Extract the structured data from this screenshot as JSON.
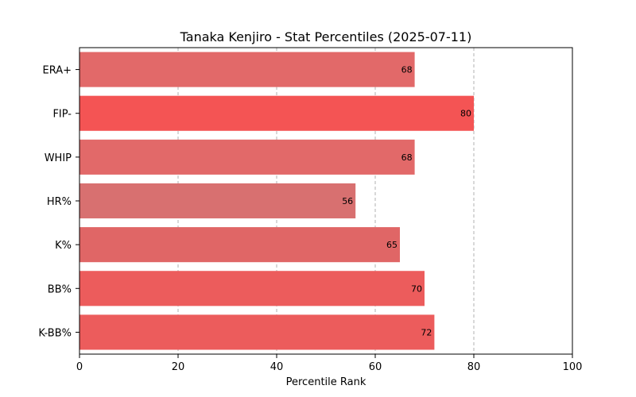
{
  "chart_data": {
    "type": "bar",
    "orientation": "horizontal",
    "title": "Tanaka Kenjiro - Stat Percentiles (2025-07-11)",
    "xlabel": "Percentile Rank",
    "ylabel": "",
    "xlim": [
      0,
      100
    ],
    "xticks": [
      0,
      20,
      40,
      60,
      80,
      100
    ],
    "grid": "vertical dashed",
    "categories": [
      "ERA+",
      "FIP-",
      "WHIP",
      "HR%",
      "K%",
      "BB%",
      "K-BB%"
    ],
    "values": [
      68,
      80,
      68,
      56,
      65,
      70,
      72
    ],
    "colors": [
      "#e26969",
      "#f45454",
      "#e26969",
      "#d87070",
      "#e06666",
      "#ec5c5c",
      "#ec5c5c"
    ]
  }
}
